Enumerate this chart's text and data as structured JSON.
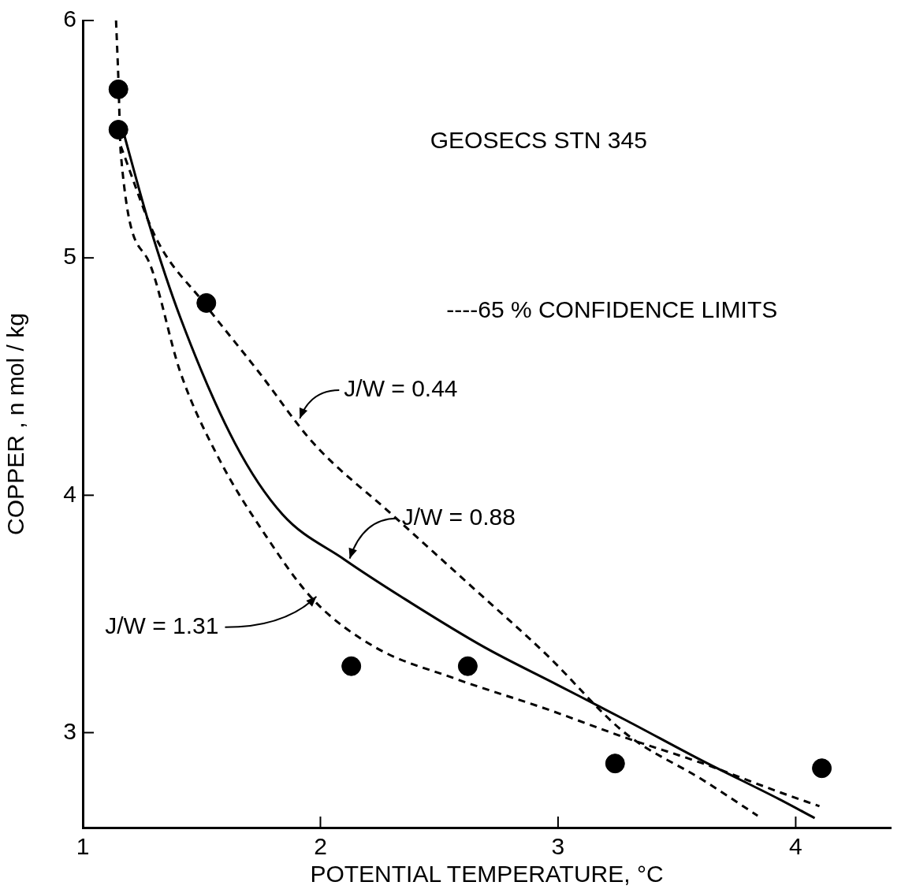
{
  "chart_data": {
    "type": "scatter",
    "xlabel": "POTENTIAL TEMPERATURE, °C",
    "ylabel": "COPPER , n mol / kg",
    "xlim": [
      1,
      4.4
    ],
    "xticks": [
      1,
      2,
      3,
      4
    ],
    "ylim": [
      2.6,
      6
    ],
    "yticks": [
      3,
      4,
      5,
      6
    ],
    "grid": false,
    "legend": false,
    "series": [
      {
        "type": "scatter",
        "color": "#000000",
        "marker": "circle",
        "x": [
          1.15,
          1.15,
          1.52,
          2.13,
          2.62,
          3.24,
          4.11
        ],
        "values": [
          5.71,
          5.54,
          4.81,
          3.28,
          3.28,
          2.87,
          2.85
        ]
      },
      {
        "type": "line",
        "color": "#000000",
        "marker": "none",
        "line_style": "solid",
        "x": [
          1.16,
          1.28,
          1.41,
          1.64,
          1.84,
          2.1,
          2.36,
          2.69,
          3.0,
          3.29,
          3.61,
          3.93,
          4.08
        ],
        "values": [
          5.57,
          5.14,
          4.75,
          4.22,
          3.92,
          3.73,
          3.56,
          3.36,
          3.2,
          3.05,
          2.88,
          2.72,
          2.64
        ]
      },
      {
        "type": "line",
        "color": "#000000",
        "marker": "none",
        "line_style": "dashed",
        "x": [
          1.16,
          1.31,
          1.51,
          1.74,
          1.97,
          2.3,
          2.62,
          2.95,
          3.28,
          3.61,
          3.84
        ],
        "values": [
          5.47,
          5.08,
          4.81,
          4.52,
          4.22,
          3.92,
          3.63,
          3.33,
          3.0,
          2.8,
          2.65
        ]
      },
      {
        "type": "line",
        "color": "#000000",
        "marker": "none",
        "line_style": "dashed",
        "x": [
          1.14,
          1.15,
          1.16,
          1.28,
          1.41,
          1.57,
          1.77,
          1.97,
          2.23,
          2.56,
          2.95,
          3.28,
          3.61,
          3.93,
          4.1
        ],
        "values": [
          6.0,
          5.75,
          5.44,
          4.98,
          4.52,
          4.16,
          3.83,
          3.56,
          3.36,
          3.23,
          3.1,
          2.98,
          2.87,
          2.75,
          2.69
        ]
      }
    ],
    "annotations": [
      "GEOSECS STN 345",
      "----65 % CONFIDENCE LIMITS",
      {
        "text": "J/W = 0.44",
        "x": 1.9,
        "y": 4.31
      },
      {
        "text": "J/W = 0.88",
        "x": 2.11,
        "y": 3.72
      },
      {
        "text": "J/W = 1.31",
        "x": 1.97,
        "y": 3.56
      }
    ]
  }
}
